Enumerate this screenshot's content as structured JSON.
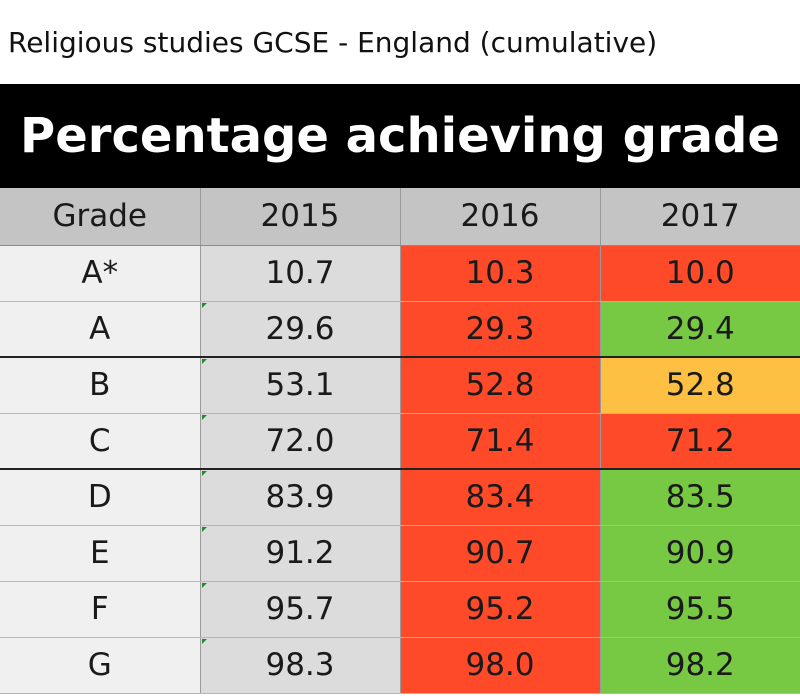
{
  "caption": "Religious studies GCSE - England (cumulative)",
  "title": "Percentage achieving grade",
  "colors": {
    "decrease": "#ff4a2a",
    "increase": "#77c943",
    "unchanged": "#fdc043",
    "header_bg": "#c4c4c4",
    "banner_bg": "#000000"
  },
  "chart_data": {
    "type": "table",
    "title": "Percentage achieving grade",
    "columns": [
      "Grade",
      "2015",
      "2016",
      "2017"
    ],
    "rows": [
      {
        "grade": "A*",
        "y2015": "10.7",
        "y2016": "10.3",
        "y2017": "10.0",
        "c2016": "red",
        "c2017": "red"
      },
      {
        "grade": "A",
        "y2015": "29.6",
        "y2016": "29.3",
        "y2017": "29.4",
        "c2016": "red",
        "c2017": "green"
      },
      {
        "grade": "B",
        "y2015": "53.1",
        "y2016": "52.8",
        "y2017": "52.8",
        "c2016": "red",
        "c2017": "amber"
      },
      {
        "grade": "C",
        "y2015": "72.0",
        "y2016": "71.4",
        "y2017": "71.2",
        "c2016": "red",
        "c2017": "red"
      },
      {
        "grade": "D",
        "y2015": "83.9",
        "y2016": "83.4",
        "y2017": "83.5",
        "c2016": "red",
        "c2017": "green"
      },
      {
        "grade": "E",
        "y2015": "91.2",
        "y2016": "90.7",
        "y2017": "90.9",
        "c2016": "red",
        "c2017": "green"
      },
      {
        "grade": "F",
        "y2015": "95.7",
        "y2016": "95.2",
        "y2017": "95.5",
        "c2016": "red",
        "c2017": "green"
      },
      {
        "grade": "G",
        "y2015": "98.3",
        "y2016": "98.0",
        "y2017": "98.2",
        "c2016": "red",
        "c2017": "green"
      }
    ]
  }
}
